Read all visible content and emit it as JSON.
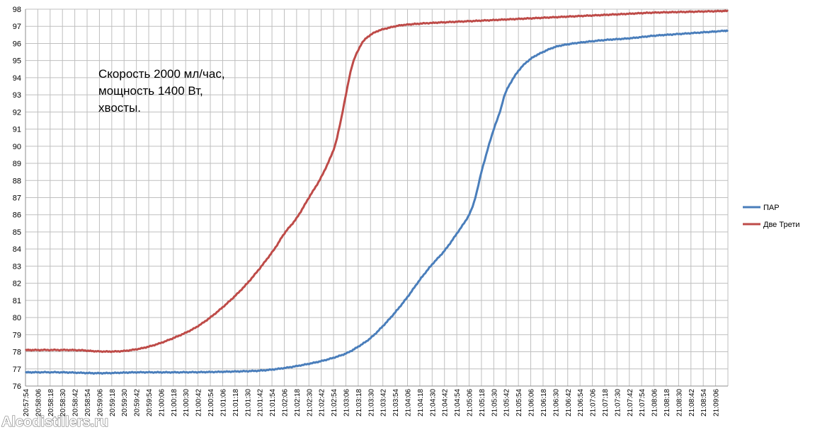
{
  "chart_data": {
    "type": "line",
    "title": "",
    "xlabel": "",
    "ylabel": "",
    "ylim": [
      76,
      98
    ],
    "y_ticks": [
      76,
      77,
      78,
      79,
      80,
      81,
      82,
      83,
      84,
      85,
      86,
      87,
      88,
      89,
      90,
      91,
      92,
      93,
      94,
      95,
      96,
      97,
      98
    ],
    "x_ticks": [
      "20:57:54",
      "20:58:06",
      "20:58:18",
      "20:58:30",
      "20:58:42",
      "20:58:54",
      "20:59:06",
      "20:59:18",
      "20:59:30",
      "20:59:42",
      "20:59:54",
      "21:00:06",
      "21:00:18",
      "21:00:30",
      "21:00:42",
      "21:00:54",
      "21:01:06",
      "21:01:18",
      "21:01:30",
      "21:01:42",
      "21:01:54",
      "21:02:06",
      "21:02:18",
      "21:02:30",
      "21:02:42",
      "21:02:54",
      "21:03:06",
      "21:03:18",
      "21:03:30",
      "21:03:42",
      "21:03:54",
      "21:04:06",
      "21:04:18",
      "21:04:30",
      "21:04:42",
      "21:04:54",
      "21:05:06",
      "21:05:18",
      "21:05:30",
      "21:05:42",
      "21:05:54",
      "21:06:06",
      "21:06:18",
      "21:06:30",
      "21:06:42",
      "21:06:54",
      "21:07:06",
      "21:07:18",
      "21:07:30",
      "21:07:42",
      "21:07:54",
      "21:08:06",
      "21:08:18",
      "21:08:30",
      "21:08:42",
      "21:08:54",
      "21:09:06"
    ],
    "grid": true,
    "legend_position": "right",
    "annotation": [
      "Скорость 2000 мл/час,",
      "мощность 1400 Вт,",
      "хвосты."
    ],
    "series": [
      {
        "name": "ПАР",
        "color": "#4a7ebb",
        "points": [
          [
            "20:57:54",
            76.8
          ],
          [
            "20:58:30",
            76.8
          ],
          [
            "20:59:06",
            76.75
          ],
          [
            "20:59:42",
            76.8
          ],
          [
            "21:00:18",
            76.8
          ],
          [
            "21:00:54",
            76.82
          ],
          [
            "21:01:18",
            76.85
          ],
          [
            "21:01:42",
            76.9
          ],
          [
            "21:02:06",
            77.05
          ],
          [
            "21:02:30",
            77.3
          ],
          [
            "21:02:48",
            77.55
          ],
          [
            "21:03:06",
            77.9
          ],
          [
            "21:03:18",
            78.3
          ],
          [
            "21:03:30",
            78.8
          ],
          [
            "21:03:42",
            79.5
          ],
          [
            "21:03:54",
            80.3
          ],
          [
            "21:04:06",
            81.2
          ],
          [
            "21:04:18",
            82.2
          ],
          [
            "21:04:30",
            83.1
          ],
          [
            "21:04:42",
            83.9
          ],
          [
            "21:04:54",
            84.9
          ],
          [
            "21:05:06",
            86.0
          ],
          [
            "21:05:12",
            87.0
          ],
          [
            "21:05:18",
            88.5
          ],
          [
            "21:05:24",
            89.8
          ],
          [
            "21:05:30",
            91.0
          ],
          [
            "21:05:36",
            92.0
          ],
          [
            "21:05:42",
            93.2
          ],
          [
            "21:05:54",
            94.4
          ],
          [
            "21:06:06",
            95.1
          ],
          [
            "21:06:18",
            95.5
          ],
          [
            "21:06:30",
            95.8
          ],
          [
            "21:06:42",
            95.95
          ],
          [
            "21:06:54",
            96.05
          ],
          [
            "21:07:18",
            96.2
          ],
          [
            "21:07:42",
            96.3
          ],
          [
            "21:08:06",
            96.45
          ],
          [
            "21:08:30",
            96.55
          ],
          [
            "21:09:06",
            96.7
          ],
          [
            "21:09:18",
            96.75
          ]
        ]
      },
      {
        "name": "Две Трети",
        "color": "#be4b48",
        "points": [
          [
            "20:57:54",
            78.1
          ],
          [
            "20:58:42",
            78.1
          ],
          [
            "20:59:06",
            78.02
          ],
          [
            "20:59:30",
            78.05
          ],
          [
            "20:59:54",
            78.3
          ],
          [
            "21:00:18",
            78.8
          ],
          [
            "21:00:42",
            79.5
          ],
          [
            "21:01:06",
            80.6
          ],
          [
            "21:01:30",
            82.0
          ],
          [
            "21:01:54",
            83.8
          ],
          [
            "21:02:06",
            84.9
          ],
          [
            "21:02:18",
            85.8
          ],
          [
            "21:02:30",
            87.0
          ],
          [
            "21:02:42",
            88.2
          ],
          [
            "21:02:54",
            89.8
          ],
          [
            "21:03:00",
            91.2
          ],
          [
            "21:03:06",
            93.0
          ],
          [
            "21:03:12",
            94.7
          ],
          [
            "21:03:18",
            95.6
          ],
          [
            "21:03:24",
            96.2
          ],
          [
            "21:03:36",
            96.7
          ],
          [
            "21:03:54",
            97.0
          ],
          [
            "21:04:06",
            97.1
          ],
          [
            "21:04:30",
            97.2
          ],
          [
            "21:05:06",
            97.3
          ],
          [
            "21:05:42",
            97.4
          ],
          [
            "21:06:18",
            97.5
          ],
          [
            "21:06:54",
            97.6
          ],
          [
            "21:07:30",
            97.7
          ],
          [
            "21:08:06",
            97.8
          ],
          [
            "21:08:42",
            97.85
          ],
          [
            "21:09:18",
            97.9
          ]
        ]
      }
    ]
  },
  "watermark": "Alcodistillers.ru"
}
